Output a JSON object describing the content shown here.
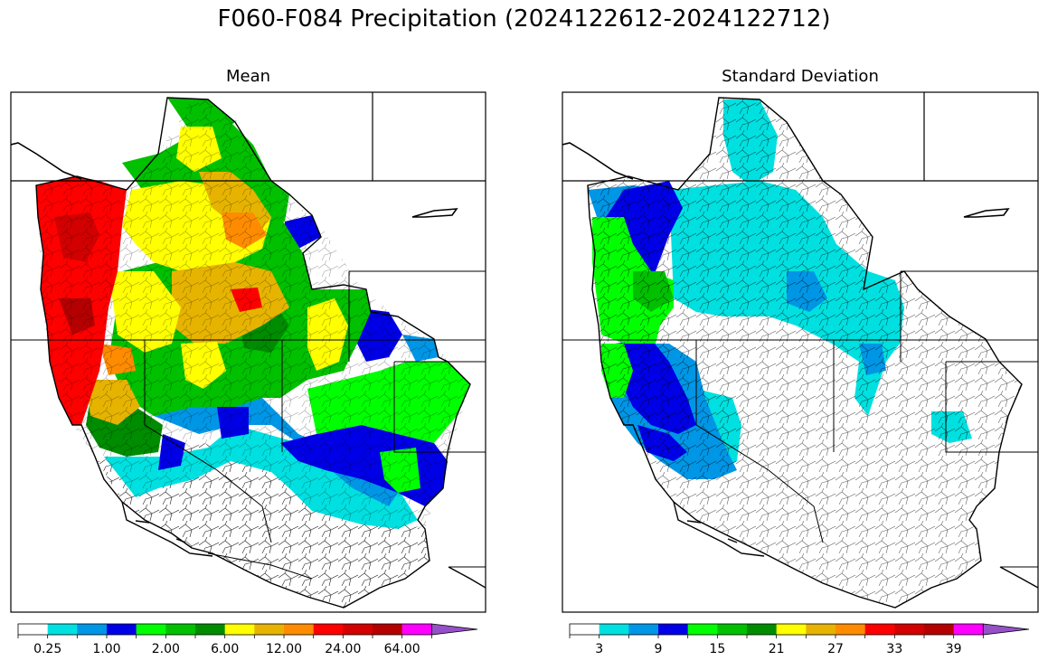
{
  "title": "F060-F084 Precipitation (2024122612-2024122712)",
  "panels": [
    {
      "title": "Mean",
      "colorbar": {
        "colors": [
          "#ffffff",
          "#00e0e0",
          "#0096e6",
          "#0000e6",
          "#00ff00",
          "#00c000",
          "#008c00",
          "#ffff00",
          "#e6b400",
          "#ff8c00",
          "#ff0000",
          "#d20000",
          "#b40000",
          "#ff00ff",
          "#9650c8"
        ],
        "tick_labels": [
          "0.25",
          "1.00",
          "2.00",
          "6.00",
          "12.00",
          "24.00",
          "64.00"
        ],
        "tick_indices": [
          1,
          3,
          5,
          7,
          9,
          11,
          13
        ]
      }
    },
    {
      "title": "Standard Deviation",
      "colorbar": {
        "colors": [
          "#ffffff",
          "#00e0e0",
          "#0096e6",
          "#0000e6",
          "#00ff00",
          "#00c000",
          "#008c00",
          "#ffff00",
          "#e6b400",
          "#ff8c00",
          "#ff0000",
          "#d20000",
          "#b40000",
          "#ff00ff",
          "#9650c8"
        ],
        "tick_labels": [
          "3",
          "9",
          "15",
          "21",
          "27",
          "33",
          "39"
        ],
        "tick_indices": [
          1,
          3,
          5,
          7,
          9,
          11,
          13
        ]
      }
    }
  ]
}
